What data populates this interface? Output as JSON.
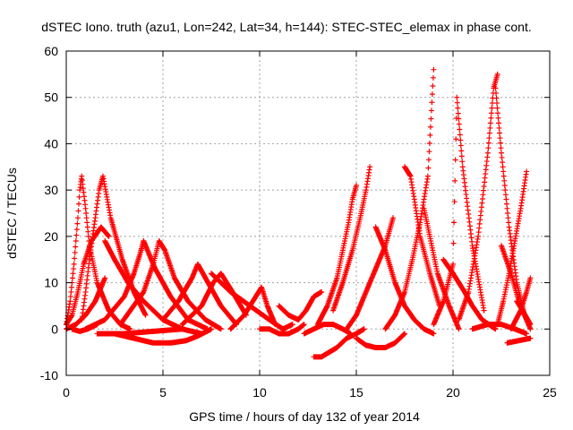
{
  "chart_data": {
    "type": "scatter",
    "title": "dSTEC Iono. truth (azu1, Lon=242, Lat=34, h=144): STEC-STEC_elemax in phase cont.",
    "xlabel": "GPS time / hours of day 132 of year 2014",
    "ylabel": "dSTEC  / TECUs",
    "xlim": [
      0,
      25
    ],
    "ylim": [
      -10,
      60
    ],
    "xticks": [
      "0",
      "5",
      "10",
      "15",
      "20",
      "25"
    ],
    "yticks": [
      "-10",
      "0",
      "10",
      "20",
      "30",
      "40",
      "50",
      "60"
    ],
    "grid": true,
    "marker": "+",
    "color": "#ff0000",
    "series": [
      {
        "x": [
          0.0,
          0.3,
          0.6,
          0.9,
          1.3,
          1.8,
          2.2
        ],
        "y": [
          1,
          3,
          8,
          14,
          19,
          22,
          20
        ]
      },
      {
        "x": [
          0.0,
          0.2,
          0.4,
          0.6,
          0.7,
          0.8,
          1.0,
          1.2,
          1.6,
          2.2,
          2.8,
          3.3
        ],
        "y": [
          1,
          6,
          14,
          24,
          30,
          33,
          26,
          18,
          10,
          4,
          1,
          0
        ]
      },
      {
        "x": [
          0.0,
          0.5,
          1.0,
          1.5,
          1.8,
          2.0
        ],
        "y": [
          0,
          1,
          3,
          6,
          9,
          11
        ]
      },
      {
        "x": [
          0.3,
          0.7,
          1.1,
          1.6
        ],
        "y": [
          0,
          -0.5,
          0,
          1
        ]
      },
      {
        "x": [
          0.8,
          1.0,
          1.2,
          1.5,
          1.7,
          1.9,
          2.3,
          2.9,
          3.5,
          4.1
        ],
        "y": [
          2,
          8,
          15,
          24,
          30,
          33,
          24,
          15,
          8,
          3
        ]
      },
      {
        "x": [
          2.0,
          2.5,
          3.2,
          4.0,
          5.0,
          6.0,
          7.0
        ],
        "y": [
          19,
          15,
          10,
          6,
          2,
          0,
          -1
        ]
      },
      {
        "x": [
          1.0,
          2.0,
          3.0,
          3.5,
          3.8,
          4.0
        ],
        "y": [
          0,
          2,
          7,
          12,
          16,
          19
        ]
      },
      {
        "x": [
          4.0,
          4.6,
          5.4,
          6.3,
          7.3
        ],
        "y": [
          19,
          13,
          7,
          2,
          0
        ]
      },
      {
        "x": [
          1.6,
          3.0,
          4.5,
          6.0
        ],
        "y": [
          -1,
          -1,
          -0.5,
          0
        ]
      },
      {
        "x": [
          2.8,
          4.0,
          4.5,
          4.8,
          5.1,
          5.6,
          6.3,
          7.2,
          8.0
        ],
        "y": [
          1,
          8,
          14,
          19,
          17,
          11,
          6,
          2,
          0
        ]
      },
      {
        "x": [
          2.5,
          3.5,
          4.5,
          5.4,
          6.2,
          6.8,
          7.5
        ],
        "y": [
          -1,
          -2,
          -3,
          -3,
          -2.5,
          -1.5,
          0
        ]
      },
      {
        "x": [
          5.0,
          5.8,
          6.5,
          6.8,
          7.2,
          8.0,
          8.8
        ],
        "y": [
          2,
          6,
          11,
          14,
          11,
          5,
          1
        ]
      },
      {
        "x": [
          6.0,
          7.0,
          7.6,
          8.0,
          8.6,
          9.3
        ],
        "y": [
          1,
          5,
          10,
          12,
          8,
          3
        ]
      },
      {
        "x": [
          7.5,
          8.5,
          9.5,
          10.5,
          11.2,
          11.7
        ],
        "y": [
          12,
          8,
          5,
          2,
          0,
          1
        ]
      },
      {
        "x": [
          8.5,
          9.2,
          9.8,
          10.1,
          10.4,
          10.8
        ],
        "y": [
          0,
          3,
          7,
          9,
          5,
          1
        ]
      },
      {
        "x": [
          10.0,
          10.5,
          11.0,
          11.5,
          12.0,
          12.3
        ],
        "y": [
          0,
          0,
          -1,
          -1,
          0,
          1
        ]
      },
      {
        "x": [
          11.0,
          11.5,
          12.0,
          12.4,
          12.8,
          13.2
        ],
        "y": [
          5,
          3,
          2,
          4,
          7,
          8
        ]
      },
      {
        "x": [
          12.3,
          12.8,
          13.3,
          13.8,
          14.3,
          14.7
        ],
        "y": [
          -1,
          0,
          1,
          1,
          0,
          -1
        ]
      },
      {
        "x": [
          12.8,
          13.2,
          13.6,
          14.0,
          14.5,
          15.0,
          15.4
        ],
        "y": [
          -6,
          -6,
          -5,
          -4,
          -2,
          -1,
          0
        ]
      },
      {
        "x": [
          13.0,
          13.5,
          14.0,
          14.3,
          14.6,
          14.8,
          15.0
        ],
        "y": [
          1,
          5,
          11,
          17,
          23,
          28,
          31
        ]
      },
      {
        "x": [
          13.8,
          14.3,
          14.8,
          15.2,
          15.5,
          15.7
        ],
        "y": [
          4,
          10,
          17,
          24,
          30,
          35
        ]
      },
      {
        "x": [
          14.5,
          15.0,
          15.5,
          16.0,
          16.5,
          16.9
        ],
        "y": [
          0,
          3,
          8,
          13,
          18,
          24
        ]
      },
      {
        "x": [
          15.0,
          15.5,
          16.0,
          16.5,
          17.0,
          17.5
        ],
        "y": [
          -2,
          -3.5,
          -4,
          -4,
          -3,
          -1
        ]
      },
      {
        "x": [
          16.0,
          16.5,
          17.0,
          17.5,
          18.0,
          18.5,
          19.0
        ],
        "y": [
          22,
          17,
          10,
          5,
          2,
          0,
          -1
        ]
      },
      {
        "x": [
          16.5,
          17.0,
          17.5,
          17.9,
          18.3,
          18.7,
          19.0
        ],
        "y": [
          0,
          3,
          8,
          15,
          23,
          33,
          56
        ]
      },
      {
        "x": [
          17.5,
          17.8,
          18.0,
          18.3,
          18.8,
          19.3
        ],
        "y": [
          35,
          33,
          28,
          20,
          12,
          5
        ]
      },
      {
        "x": [
          18.5,
          18.8,
          19.2,
          19.8,
          20.3
        ],
        "y": [
          26,
          20,
          12,
          5,
          0
        ]
      },
      {
        "x": [
          19.0,
          19.5,
          20.0,
          20.2,
          20.5,
          21.0,
          21.6
        ],
        "y": [
          1,
          6,
          14,
          50,
          35,
          18,
          4
        ]
      },
      {
        "x": [
          19.5,
          20.0,
          20.6,
          21.0,
          21.5,
          22.2
        ],
        "y": [
          15,
          12,
          8,
          5,
          2,
          0
        ]
      },
      {
        "x": [
          20.3,
          20.8,
          21.3,
          21.8,
          22.1,
          22.3
        ],
        "y": [
          2,
          8,
          20,
          38,
          52,
          55
        ]
      },
      {
        "x": [
          22.2,
          22.5,
          22.9,
          23.3,
          23.7
        ],
        "y": [
          52,
          38,
          22,
          10,
          3
        ]
      },
      {
        "x": [
          21.0,
          21.8,
          22.5,
          23.2,
          23.8
        ],
        "y": [
          0,
          1,
          1,
          0,
          -1
        ]
      },
      {
        "x": [
          22.3,
          22.6,
          22.9,
          23.2,
          23.5,
          23.8
        ],
        "y": [
          1,
          6,
          12,
          19,
          26,
          34
        ]
      },
      {
        "x": [
          22.5,
          23.0,
          23.4,
          23.8,
          24.0
        ],
        "y": [
          18,
          12,
          6,
          2,
          0
        ]
      },
      {
        "x": [
          23.0,
          23.5,
          23.8,
          24.0
        ],
        "y": [
          0,
          4,
          8,
          11
        ]
      },
      {
        "x": [
          22.8,
          23.4,
          24.0
        ],
        "y": [
          -3,
          -2.5,
          -2
        ]
      },
      {
        "x": [
          23.3,
          23.6,
          24.0
        ],
        "y": [
          6,
          4,
          1
        ]
      }
    ]
  }
}
